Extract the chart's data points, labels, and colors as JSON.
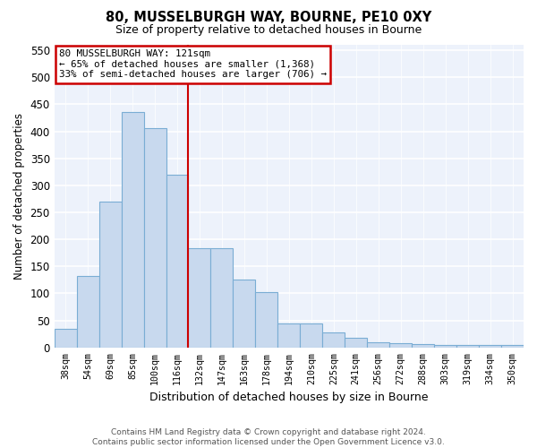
{
  "title1": "80, MUSSELBURGH WAY, BOURNE, PE10 0XY",
  "title2": "Size of property relative to detached houses in Bourne",
  "xlabel": "Distribution of detached houses by size in Bourne",
  "ylabel": "Number of detached properties",
  "categories": [
    "38sqm",
    "54sqm",
    "69sqm",
    "85sqm",
    "100sqm",
    "116sqm",
    "132sqm",
    "147sqm",
    "163sqm",
    "178sqm",
    "194sqm",
    "210sqm",
    "225sqm",
    "241sqm",
    "256sqm",
    "272sqm",
    "288sqm",
    "303sqm",
    "319sqm",
    "334sqm",
    "350sqm"
  ],
  "values": [
    35,
    133,
    270,
    435,
    405,
    320,
    183,
    183,
    125,
    103,
    45,
    45,
    28,
    18,
    10,
    8,
    6,
    5,
    4,
    4,
    4
  ],
  "bar_color": "#c8d9ee",
  "bar_edge_color": "#7aadd4",
  "ref_line_x": 6.0,
  "ref_line_label": "80 MUSSELBURGH WAY: 121sqm",
  "annotation_line1": "← 65% of detached houses are smaller (1,368)",
  "annotation_line2": "33% of semi-detached houses are larger (706) →",
  "annotation_box_color": "#cc0000",
  "ylim": [
    0,
    560
  ],
  "yticks": [
    0,
    50,
    100,
    150,
    200,
    250,
    300,
    350,
    400,
    450,
    500,
    550
  ],
  "footer1": "Contains HM Land Registry data © Crown copyright and database right 2024.",
  "footer2": "Contains public sector information licensed under the Open Government Licence v3.0.",
  "bg_color": "#edf2fb"
}
